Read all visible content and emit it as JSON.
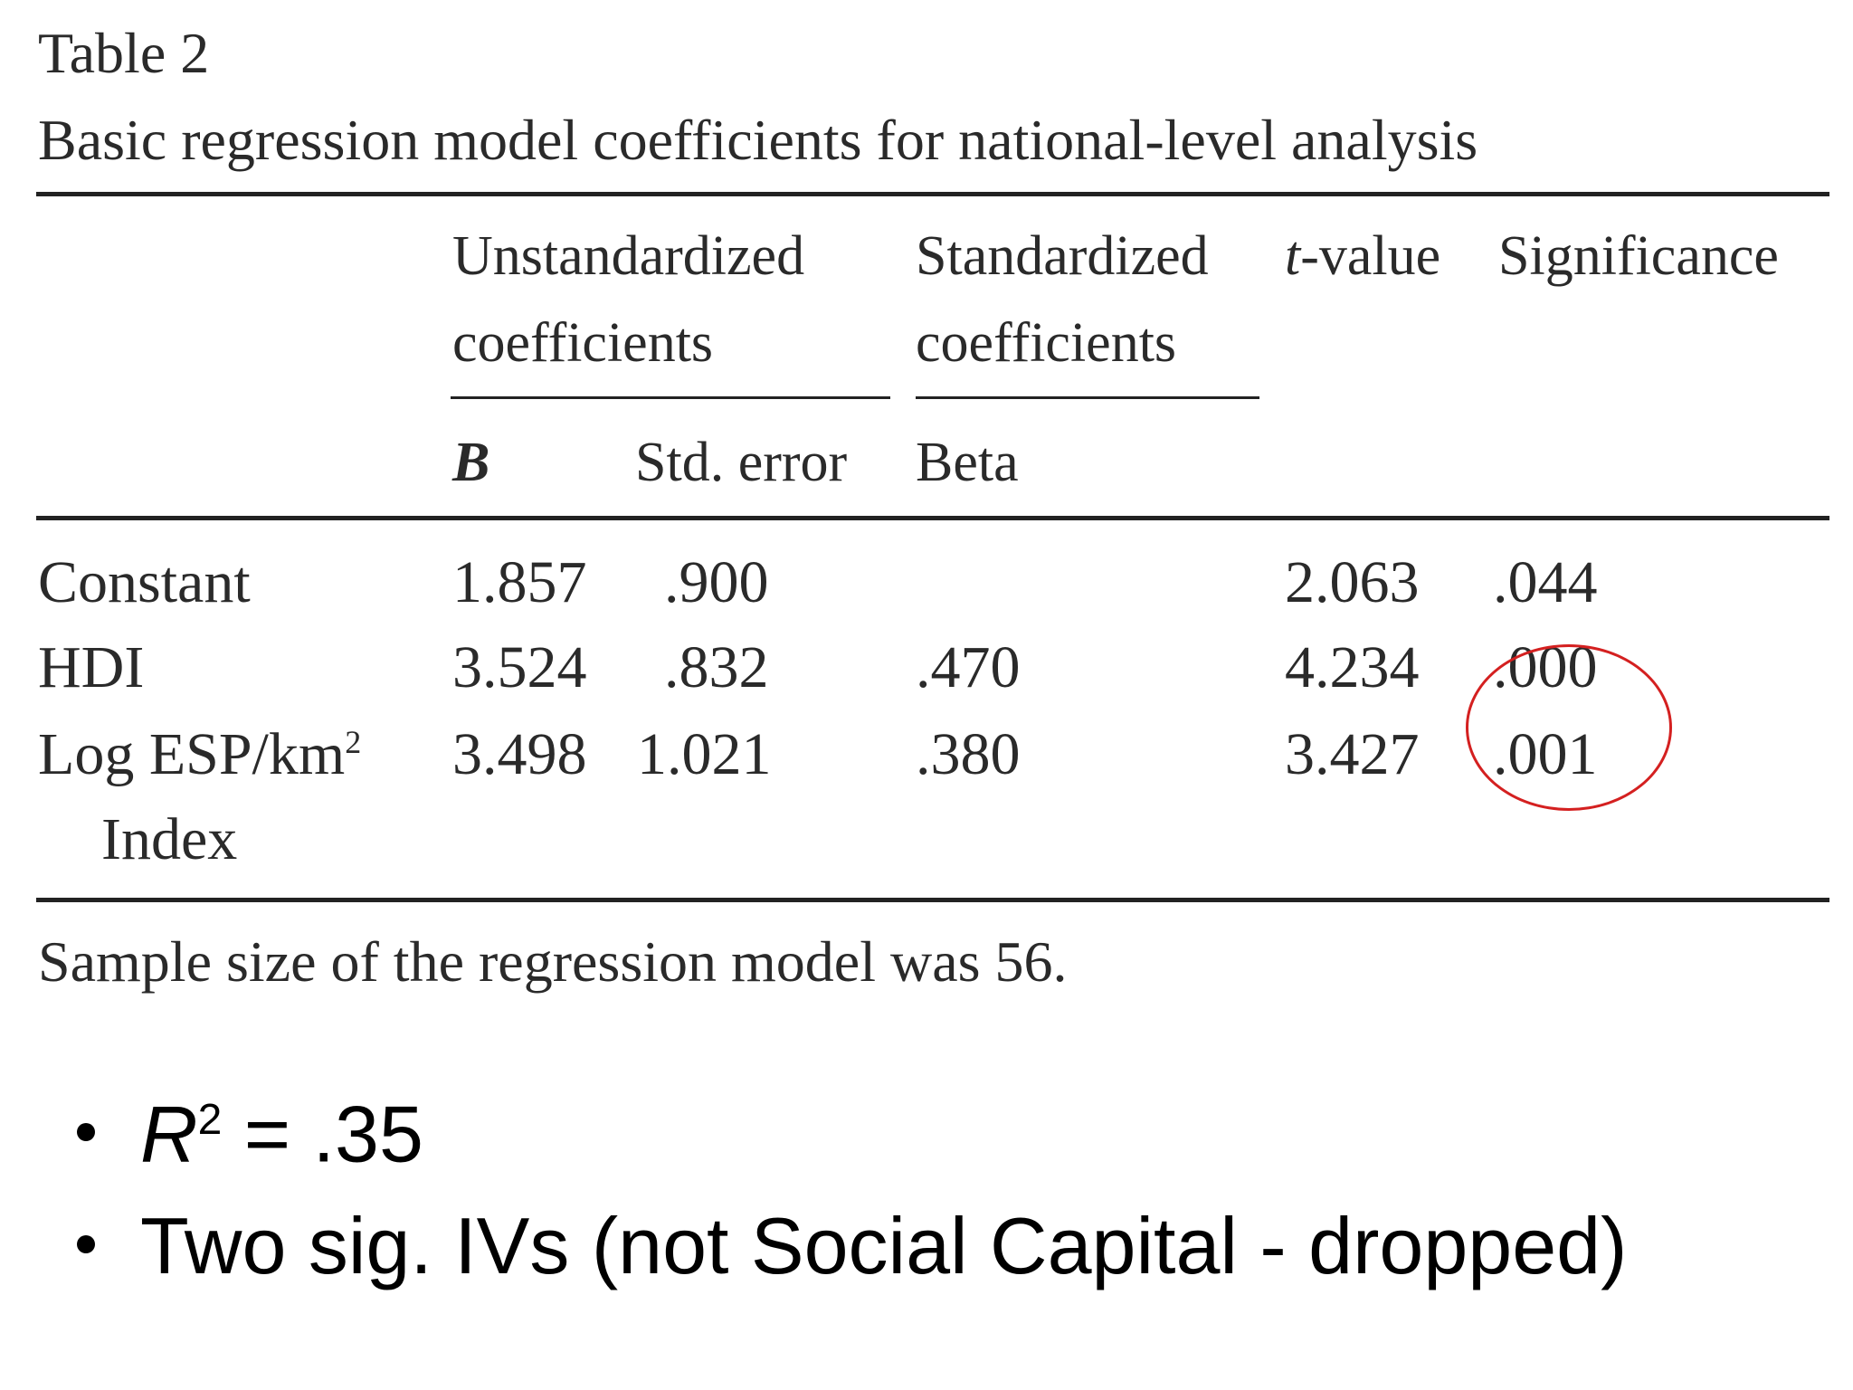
{
  "table": {
    "label": "Table 2",
    "caption": "Basic regression model coefficients for national-level analysis",
    "headers": {
      "unstandardized_line1": "Unstandardized",
      "unstandardized_line2": "coefficients",
      "standardized_line1": "Standardized",
      "standardized_line2": "coefficients",
      "t_italic": "t",
      "t_rest": "-value",
      "significance": "Significance",
      "b": "B",
      "std_error": "Std. error",
      "beta": "Beta"
    },
    "rows": [
      {
        "label": "Constant",
        "b": "1.857",
        "se": ".900",
        "beta": "",
        "t": "2.063",
        "sig": ".044"
      },
      {
        "label": "HDI",
        "b": "3.524",
        "se": ".832",
        "beta": ".470",
        "t": "4.234",
        "sig": ".000"
      },
      {
        "label": "Log ESP/km",
        "label_sup": "2",
        "label_line2": "Index",
        "b": "3.498",
        "se": "1.021",
        "beta": ".380",
        "t": "3.427",
        "sig": ".001"
      }
    ],
    "note": "Sample size of the regression model was 56."
  },
  "bullets": {
    "r2_symbol": "R",
    "r2_sup": "2",
    "r2_rest": " = .35",
    "item2": "Two sig. IVs (not Social Capital - dropped)"
  },
  "colors": {
    "annotation_circle": "#d42020"
  }
}
